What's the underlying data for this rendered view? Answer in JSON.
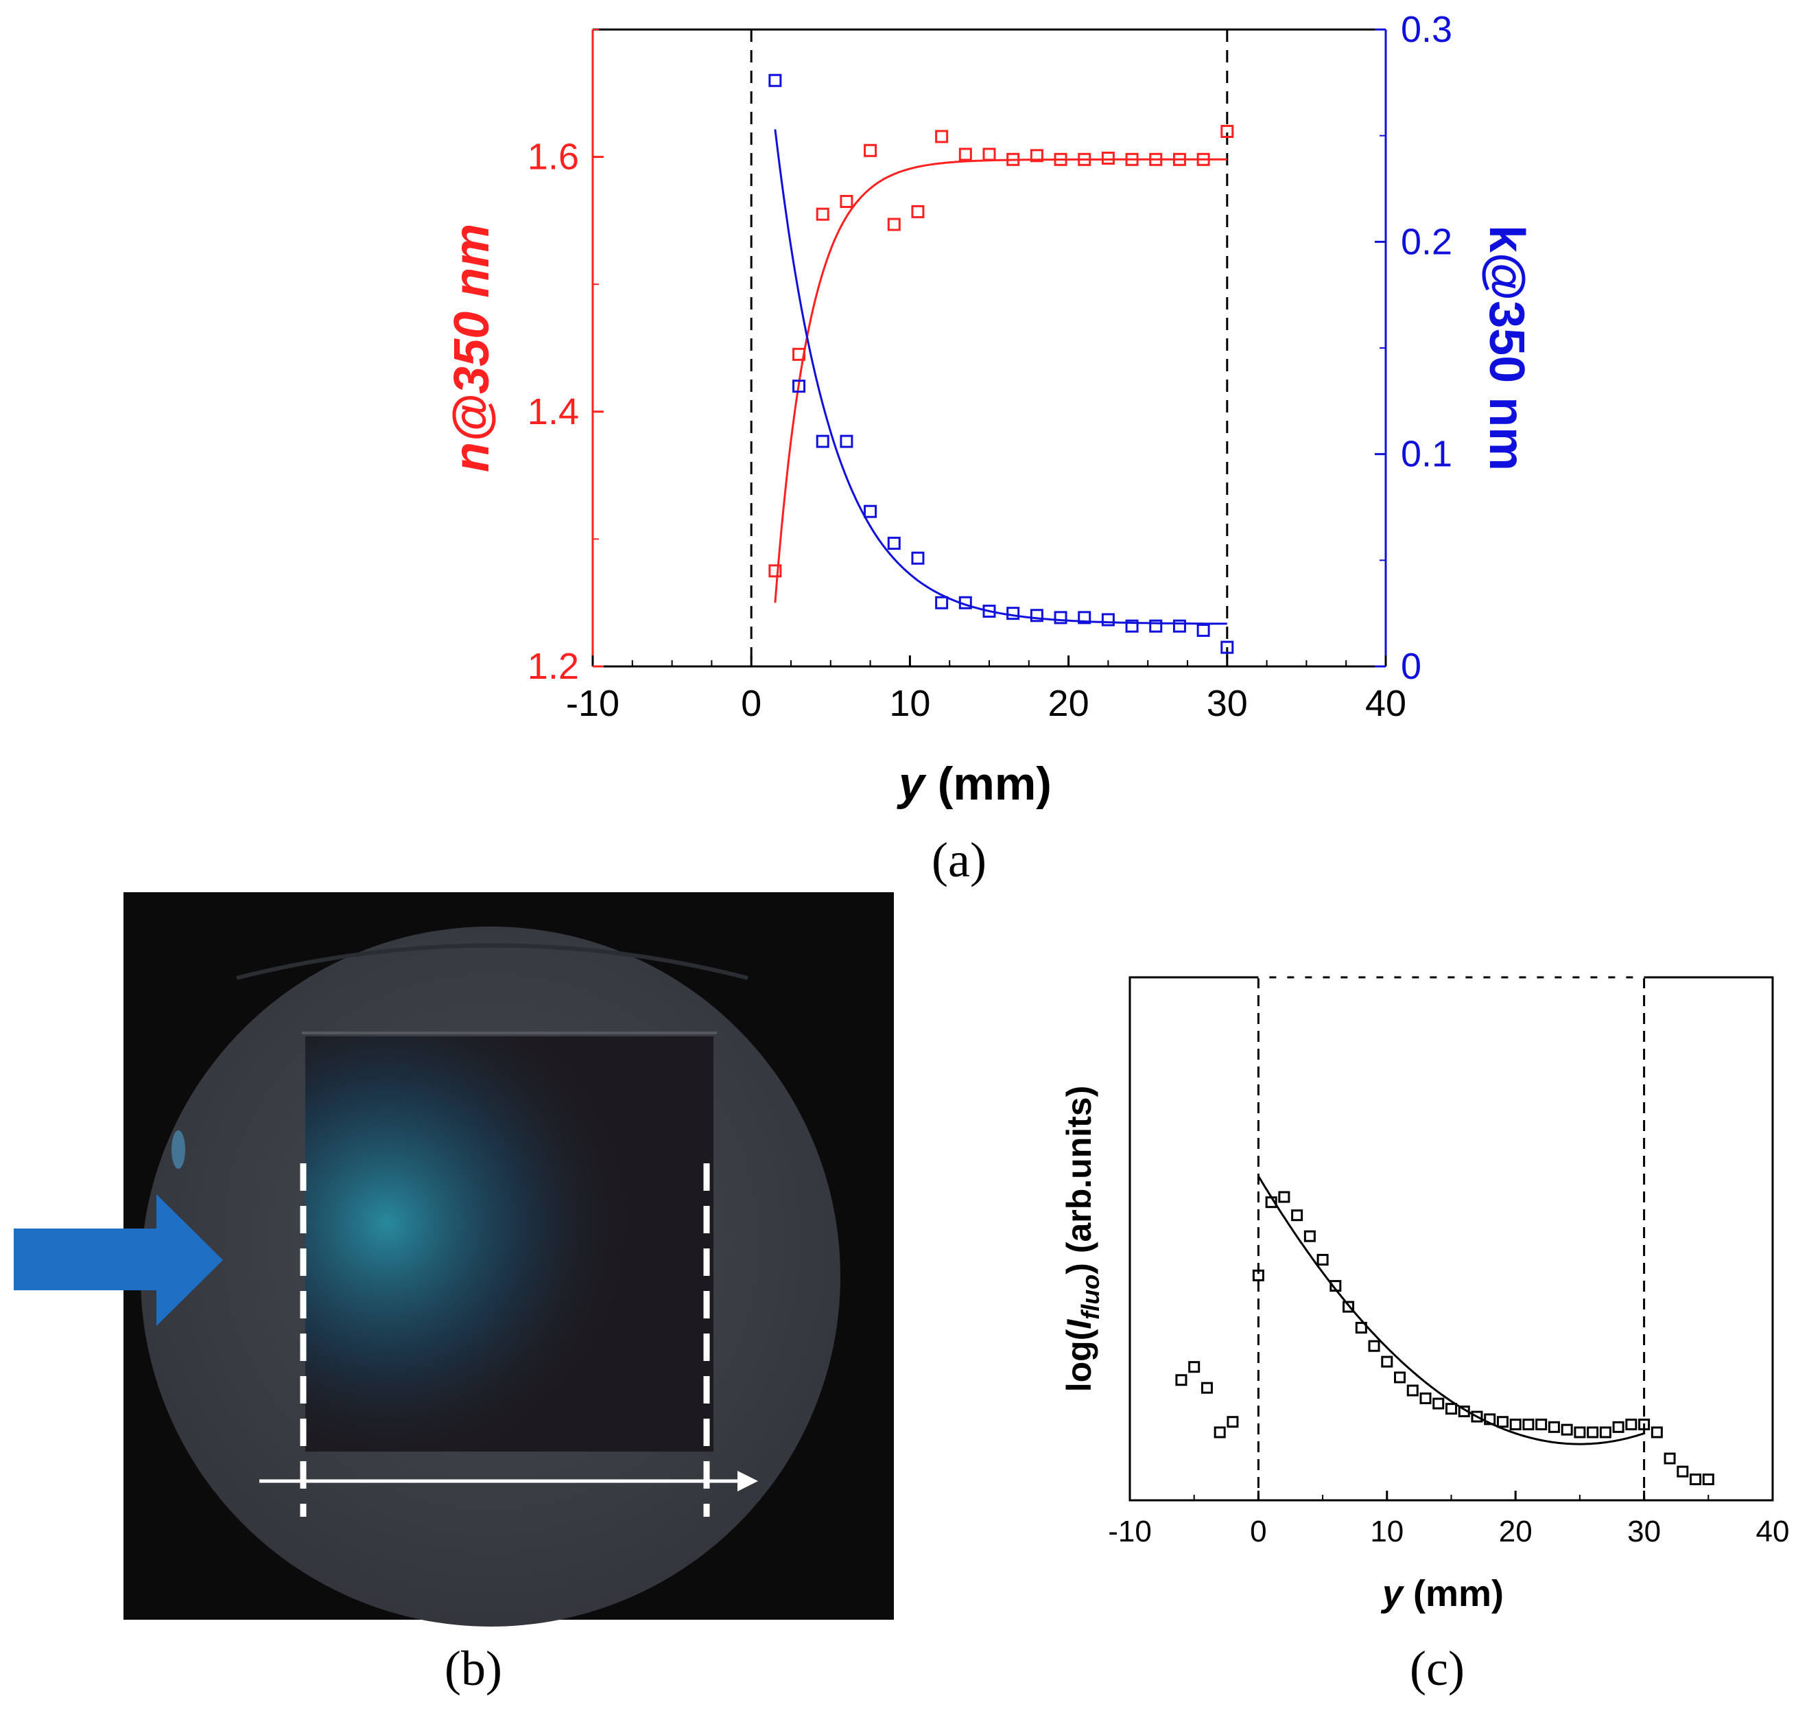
{
  "panel_labels": {
    "a": "(a)",
    "b": "(b)",
    "c": "(c)"
  },
  "colors": {
    "red": "#ff2020",
    "blue": "#1010dd",
    "black": "#000000",
    "arrow_blue": "#1f6fc4",
    "wafer": "#3b3f46"
  },
  "photo": {
    "description_icon": "wafer-photo",
    "arrow_icon": "arrow-right-icon"
  },
  "chart_data": [
    {
      "id": "a",
      "type": "scatter",
      "title": "",
      "xlabel_main": "y",
      "xlabel_unit": " (mm)",
      "ylabel_left": "n@350 nm",
      "ylabel_right": "k@350 nm",
      "xlim": [
        -10,
        40
      ],
      "ylim_left": [
        1.2,
        1.7
      ],
      "ylim_right": [
        0,
        0.3
      ],
      "xticks": [
        -10,
        0,
        10,
        20,
        30,
        40
      ],
      "yticks_left": [
        1.2,
        1.4,
        1.6
      ],
      "yticks_left_labels": [
        "1.2",
        "1.4",
        "1.6"
      ],
      "yticks_right": [
        0,
        0.1,
        0.2,
        0.3
      ],
      "yticks_right_labels": [
        "0",
        "0.1",
        "0.2",
        "0.3"
      ],
      "vlines": [
        0,
        30
      ],
      "series": [
        {
          "axis": "left",
          "color": "red",
          "x": [
            1.5,
            3,
            4.5,
            6,
            7.5,
            9,
            10.5,
            12,
            13.5,
            15,
            16.5,
            18,
            19.5,
            21,
            22.5,
            24,
            25.5,
            27,
            28.5,
            30
          ],
          "y": [
            1.275,
            1.445,
            1.555,
            1.565,
            1.605,
            1.547,
            1.557,
            1.616,
            1.602,
            1.602,
            1.598,
            1.601,
            1.598,
            1.598,
            1.599,
            1.598,
            1.598,
            1.598,
            1.598,
            1.62
          ]
        },
        {
          "axis": "right",
          "color": "blue",
          "x": [
            1.5,
            3,
            4.5,
            6,
            7.5,
            9,
            10.5,
            12,
            13.5,
            15,
            16.5,
            18,
            19.5,
            21,
            22.5,
            24,
            25.5,
            27,
            28.5,
            30
          ],
          "y": [
            0.276,
            0.132,
            0.106,
            0.106,
            0.073,
            0.058,
            0.051,
            0.03,
            0.03,
            0.026,
            0.025,
            0.024,
            0.023,
            0.023,
            0.022,
            0.019,
            0.019,
            0.019,
            0.017,
            0.009
          ]
        }
      ],
      "fits": [
        {
          "axis": "left",
          "color": "red",
          "x0": 1.5,
          "x1": 30,
          "y_start": 1.25,
          "y_end": 1.598,
          "tau": 2.2
        },
        {
          "axis": "right",
          "color": "blue",
          "x0": 1.5,
          "x1": 30,
          "y_start": 0.253,
          "y_end": 0.02,
          "tau": 3.7
        }
      ]
    },
    {
      "id": "c",
      "type": "scatter",
      "title": "",
      "xlabel_main": "y",
      "xlabel_unit": " (mm)",
      "ylabel_prefix": "log(",
      "ylabel_italic": "I",
      "ylabel_sub": "fluo",
      "ylabel_suffix": ") (arb.units)",
      "xlim": [
        -10,
        40
      ],
      "ylim": [
        0,
        10
      ],
      "xticks": [
        -10,
        0,
        10,
        20,
        30,
        40
      ],
      "vlines": [
        0,
        30
      ],
      "series": [
        {
          "color": "black",
          "x": [
            -6,
            -5,
            -4,
            -3,
            -2,
            0,
            1,
            2,
            3,
            4,
            5,
            6,
            7,
            8,
            9,
            10,
            11,
            12,
            13,
            14,
            15,
            16,
            17,
            18,
            19,
            20,
            21,
            22,
            23,
            24,
            25,
            26,
            27,
            28,
            29,
            30,
            31,
            32,
            33,
            34,
            35
          ],
          "y": [
            2.3,
            2.55,
            2.15,
            1.3,
            1.5,
            4.3,
            5.7,
            5.8,
            5.45,
            5.05,
            4.6,
            4.1,
            3.7,
            3.3,
            2.95,
            2.65,
            2.35,
            2.1,
            1.95,
            1.85,
            1.75,
            1.7,
            1.6,
            1.55,
            1.5,
            1.45,
            1.45,
            1.45,
            1.4,
            1.35,
            1.3,
            1.3,
            1.3,
            1.4,
            1.45,
            1.45,
            1.3,
            0.8,
            0.55,
            0.4,
            0.4
          ]
        }
      ],
      "fit": {
        "color": "black",
        "x0": 0,
        "x1": 30,
        "poly": [
          6.2,
          -0.41,
          0.0082
        ],
        "y_min": 0.87
      }
    }
  ]
}
